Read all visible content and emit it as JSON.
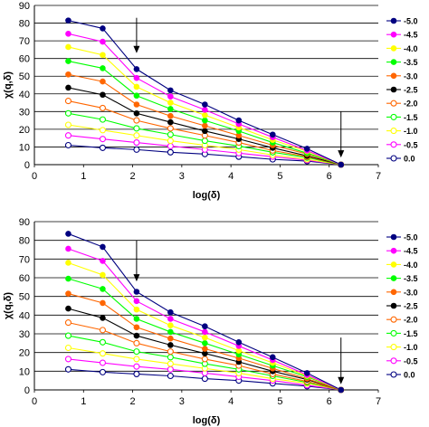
{
  "chart_data": [
    {
      "type": "line",
      "xlabel": "log(δ)",
      "ylabel": "χ(q,δ)",
      "xlim": [
        0,
        7
      ],
      "ylim": [
        0,
        90
      ],
      "xticks": [
        "0",
        "1",
        "2",
        "3",
        "4",
        "5",
        "6",
        "7"
      ],
      "yticks": [
        "0",
        "10",
        "20",
        "30",
        "40",
        "50",
        "60",
        "70",
        "80",
        "90"
      ],
      "grid": "horizontal",
      "legend_position": "right",
      "x": [
        0.69,
        1.39,
        2.08,
        2.77,
        3.47,
        4.16,
        4.85,
        5.55,
        6.24
      ],
      "series": [
        {
          "name": "-5.0",
          "color": "#000080",
          "filled": true,
          "values": [
            81.5,
            77,
            54,
            42,
            34,
            25,
            17,
            9,
            0
          ]
        },
        {
          "name": "-4.5",
          "color": "#ff00ff",
          "filled": true,
          "values": [
            74,
            69.5,
            49,
            38.5,
            31,
            23,
            15.5,
            8,
            0
          ]
        },
        {
          "name": "-4.0",
          "color": "#ffff00",
          "filled": true,
          "values": [
            66.5,
            62,
            44,
            35,
            28,
            21,
            14,
            7.5,
            0
          ]
        },
        {
          "name": "-3.5",
          "color": "#00ff00",
          "filled": true,
          "values": [
            58.5,
            54.5,
            39,
            31.5,
            25,
            19,
            12.5,
            6.5,
            0
          ]
        },
        {
          "name": "-3.0",
          "color": "#ff6600",
          "filled": true,
          "values": [
            51,
            47,
            34,
            27.5,
            22,
            16.5,
            11,
            6,
            0
          ]
        },
        {
          "name": "-2.5",
          "color": "#000000",
          "filled": true,
          "values": [
            43.5,
            39.5,
            29,
            24,
            19,
            14.5,
            9.5,
            5,
            0
          ]
        },
        {
          "name": "-2.0",
          "color": "#ff6600",
          "filled": false,
          "values": [
            36,
            32,
            25,
            20.5,
            16.5,
            12.5,
            8,
            4.5,
            0
          ]
        },
        {
          "name": "-1.5",
          "color": "#00ff00",
          "filled": false,
          "values": [
            29,
            25.5,
            20.5,
            17,
            13.5,
            10.5,
            7,
            4,
            0
          ]
        },
        {
          "name": "-1.0",
          "color": "#ffff00",
          "filled": false,
          "values": [
            22.5,
            19.5,
            16.5,
            13.5,
            11,
            8.5,
            5.5,
            3,
            0
          ]
        },
        {
          "name": "-0.5",
          "color": "#ff00ff",
          "filled": false,
          "values": [
            16.5,
            14.5,
            12.5,
            10.5,
            8.5,
            6.5,
            4.5,
            2.5,
            0
          ]
        },
        {
          "name": "0.0",
          "color": "#000080",
          "filled": false,
          "values": [
            11,
            9.5,
            8.5,
            7,
            6,
            4.5,
            3,
            2,
            0
          ]
        }
      ],
      "annotations": [
        {
          "type": "arrow-down",
          "x": 2.08,
          "from_y": 83,
          "to_y": 63
        },
        {
          "type": "arrow-down",
          "x": 6.24,
          "from_y": 30,
          "to_y": 4
        }
      ]
    },
    {
      "type": "line",
      "xlabel": "log(δ)",
      "ylabel": "χ(q,δ)",
      "xlim": [
        0,
        7
      ],
      "ylim": [
        0,
        90
      ],
      "xticks": [
        "0",
        "1",
        "2",
        "3",
        "4",
        "5",
        "6",
        "7"
      ],
      "yticks": [
        "0",
        "10",
        "20",
        "30",
        "40",
        "50",
        "60",
        "70",
        "80",
        "90"
      ],
      "grid": "horizontal",
      "legend_position": "right",
      "x": [
        0.69,
        1.39,
        2.08,
        2.77,
        3.47,
        4.16,
        4.85,
        5.55,
        6.24
      ],
      "series": [
        {
          "name": "-5.0",
          "color": "#000080",
          "filled": true,
          "values": [
            83.5,
            76.5,
            52.5,
            41.5,
            34,
            25.5,
            17.5,
            9,
            0
          ]
        },
        {
          "name": "-4.5",
          "color": "#ff00ff",
          "filled": true,
          "values": [
            75.5,
            69,
            47.5,
            38,
            31,
            23.5,
            16,
            8,
            0
          ]
        },
        {
          "name": "-4.0",
          "color": "#ffff00",
          "filled": true,
          "values": [
            68,
            61.5,
            43,
            34.5,
            28,
            21,
            14.5,
            7.5,
            0
          ]
        },
        {
          "name": "-3.5",
          "color": "#00ff00",
          "filled": true,
          "values": [
            59.5,
            54,
            38,
            31,
            25,
            19,
            13,
            7,
            0
          ]
        },
        {
          "name": "-3.0",
          "color": "#ff6600",
          "filled": true,
          "values": [
            51.5,
            46.5,
            33.5,
            27.5,
            22,
            17,
            11.5,
            6,
            0
          ]
        },
        {
          "name": "-2.5",
          "color": "#000000",
          "filled": true,
          "values": [
            43.5,
            38.5,
            29,
            24,
            19.5,
            15,
            10,
            5.5,
            0
          ]
        },
        {
          "name": "-2.0",
          "color": "#ff6600",
          "filled": false,
          "values": [
            36,
            32,
            25,
            20.5,
            16.5,
            13,
            8.5,
            4.5,
            0
          ]
        },
        {
          "name": "-1.5",
          "color": "#00ff00",
          "filled": false,
          "values": [
            29,
            25.5,
            20.5,
            17.5,
            14,
            11,
            7.5,
            4,
            0
          ]
        },
        {
          "name": "-1.0",
          "color": "#ffff00",
          "filled": false,
          "values": [
            22.5,
            19.5,
            16.5,
            14,
            11.5,
            9,
            6,
            3.5,
            0
          ]
        },
        {
          "name": "-0.5",
          "color": "#ff00ff",
          "filled": false,
          "values": [
            16.5,
            14.5,
            12.5,
            11,
            9,
            7,
            5,
            2.5,
            0
          ]
        },
        {
          "name": "0.0",
          "color": "#000080",
          "filled": false,
          "values": [
            11,
            9.5,
            8.5,
            7.5,
            6,
            5,
            3.5,
            2,
            0
          ]
        }
      ],
      "annotations": [
        {
          "type": "arrow-down",
          "x": 2.08,
          "from_y": 80,
          "to_y": 58
        },
        {
          "type": "arrow-down",
          "x": 6.24,
          "from_y": 28,
          "to_y": 3
        }
      ]
    }
  ]
}
